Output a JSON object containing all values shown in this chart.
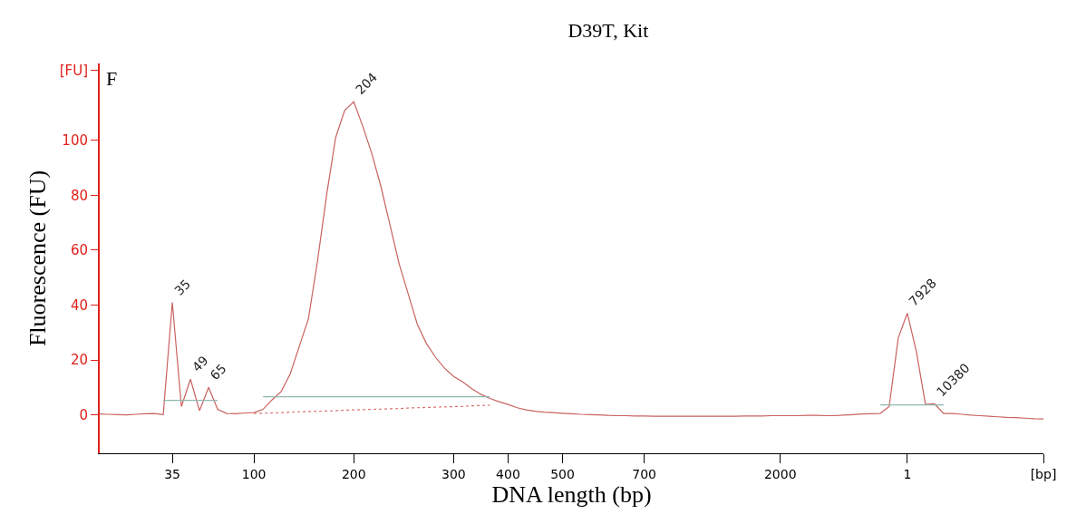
{
  "chart_data": {
    "type": "line",
    "title": "D39T, Kit",
    "xlabel": "DNA length (bp)",
    "ylabel": "Fluorescence (FU)",
    "categories": [
      null,
      null,
      null,
      null,
      null,
      null,
      null,
      null,
      "35",
      null,
      null,
      null,
      null,
      null,
      null,
      null,
      null,
      "100",
      null,
      null,
      null,
      null,
      null,
      null,
      null,
      null,
      null,
      null,
      "200",
      null,
      null,
      null,
      null,
      null,
      null,
      null,
      null,
      null,
      null,
      "300",
      null,
      null,
      null,
      null,
      null,
      "400",
      null,
      null,
      null,
      null,
      null,
      "500",
      null,
      null,
      null,
      null,
      null,
      null,
      null,
      null,
      "700",
      null,
      null,
      null,
      null,
      null,
      null,
      null,
      null,
      null,
      null,
      null,
      null,
      null,
      null,
      "2000",
      null,
      null,
      null,
      null,
      null,
      null,
      null,
      null,
      null,
      null,
      null,
      null,
      null,
      "1",
      null,
      null,
      null,
      null,
      null,
      null,
      null,
      null,
      null,
      null,
      null,
      null,
      null,
      null,
      "[bp]"
    ],
    "series": [
      {
        "color": "#c8625f",
        "values": [
          0.3,
          0.2,
          0.1,
          0,
          0.2,
          0.4,
          0.5,
          0.1,
          41,
          3,
          13,
          1.5,
          10,
          2,
          0.5,
          0.4,
          0.7,
          0.8,
          2,
          5.5,
          8.5,
          15,
          25,
          35,
          56,
          80,
          101,
          111,
          114,
          105,
          95,
          83,
          69,
          55,
          44,
          33,
          26,
          21,
          17,
          14,
          12,
          9.5,
          7.5,
          6,
          4.8,
          3.8,
          2.6,
          1.8,
          1.3,
          1,
          0.8,
          0.6,
          0.4,
          0.2,
          0.1,
          0,
          -0.2,
          -0.3,
          -0.3,
          -0.4,
          -0.4,
          -0.5,
          -0.5,
          -0.5,
          -0.5,
          -0.5,
          -0.5,
          -0.5,
          -0.5,
          -0.5,
          -0.5,
          -0.4,
          -0.4,
          -0.4,
          -0.3,
          -0.3,
          -0.3,
          -0.3,
          -0.2,
          -0.2,
          -0.3,
          -0.3,
          -0.1,
          0.1,
          0.3,
          0.4,
          0.5,
          3,
          28,
          37,
          23,
          3.8,
          4,
          0.5,
          0.5,
          0.2,
          -0.1,
          -0.3,
          -0.5,
          -0.7,
          -0.9,
          -1,
          -1.2,
          -1.4,
          -1.5
        ]
      },
      {
        "color": "#8fb8b0",
        "values": [
          null,
          null,
          null,
          null,
          null,
          null,
          null,
          5.3,
          5.3,
          5.3,
          5.3,
          5.3,
          5.3,
          5.3,
          null,
          null,
          null,
          null,
          null,
          null,
          null,
          null,
          null,
          null,
          null,
          null,
          null,
          null,
          null,
          null,
          null,
          null,
          null,
          null,
          null,
          null,
          null,
          null,
          null,
          null,
          null,
          null,
          null,
          null,
          null,
          null,
          null,
          null,
          null,
          null,
          null,
          null,
          null,
          null,
          null,
          null,
          null,
          null,
          null,
          null,
          null,
          null,
          null,
          null,
          null,
          null,
          null,
          null,
          null,
          null,
          null,
          null,
          null,
          null,
          null,
          null,
          null,
          null,
          null,
          null,
          null,
          null,
          null,
          null,
          null,
          null,
          null,
          null,
          null,
          null,
          null,
          null,
          null,
          null,
          null,
          null,
          null,
          null,
          null,
          null,
          null,
          null,
          null,
          null,
          null
        ]
      },
      {
        "color": "#8fb8b0",
        "values": [
          null,
          null,
          null,
          null,
          null,
          null,
          null,
          null,
          null,
          null,
          null,
          null,
          null,
          null,
          null,
          null,
          null,
          null,
          6.6,
          6.6,
          6.6,
          6.6,
          6.6,
          6.6,
          6.6,
          6.6,
          6.6,
          6.6,
          6.6,
          6.6,
          6.6,
          6.6,
          6.6,
          6.6,
          6.6,
          6.6,
          6.6,
          6.6,
          6.6,
          6.6,
          6.6,
          6.6,
          6.6,
          6.6,
          null,
          null,
          null,
          null,
          null,
          null,
          null,
          null,
          null,
          null,
          null,
          null,
          null,
          null,
          null,
          null,
          null,
          null,
          null,
          null,
          null,
          null,
          null,
          null,
          null,
          null,
          null,
          null,
          null,
          null,
          null,
          null,
          null,
          null,
          null,
          null,
          null,
          null,
          null,
          null,
          null,
          null,
          null,
          null,
          null,
          null,
          null,
          null,
          null,
          null,
          null,
          null,
          null,
          null,
          null,
          null,
          null,
          null,
          null,
          null,
          null
        ]
      },
      {
        "color": "#8fb8b0",
        "values": [
          null,
          null,
          null,
          null,
          null,
          null,
          null,
          null,
          null,
          null,
          null,
          null,
          null,
          null,
          null,
          null,
          null,
          null,
          null,
          null,
          null,
          null,
          null,
          null,
          null,
          null,
          null,
          null,
          null,
          null,
          null,
          null,
          null,
          null,
          null,
          null,
          null,
          null,
          null,
          null,
          null,
          null,
          null,
          null,
          null,
          null,
          null,
          null,
          null,
          null,
          null,
          null,
          null,
          null,
          null,
          null,
          null,
          null,
          null,
          null,
          null,
          null,
          null,
          null,
          null,
          null,
          null,
          null,
          null,
          null,
          null,
          null,
          null,
          null,
          null,
          null,
          null,
          null,
          null,
          null,
          null,
          null,
          null,
          null,
          null,
          null,
          3.6,
          3.6,
          3.6,
          3.6,
          3.6,
          3.6,
          3.6,
          3.6,
          null,
          null,
          null,
          null,
          null,
          null,
          null,
          null,
          null,
          null,
          null
        ]
      },
      {
        "color": "#d9706c",
        "line_style": "dotted",
        "values": [
          null,
          null,
          null,
          null,
          null,
          null,
          null,
          null,
          null,
          null,
          null,
          null,
          null,
          null,
          null,
          null,
          null,
          0.5,
          0.6,
          0.7,
          0.8,
          1,
          1.1,
          1.2,
          1.3,
          1.4,
          1.5,
          1.7,
          1.8,
          1.9,
          2,
          2.1,
          2.2,
          2.3,
          2.5,
          2.6,
          2.7,
          2.8,
          2.9,
          3,
          3.1,
          3.3,
          3.4,
          3.5,
          null,
          null,
          null,
          null,
          null,
          null,
          null,
          null,
          null,
          null,
          null,
          null,
          null,
          null,
          null,
          null,
          null,
          null,
          null,
          null,
          null,
          null,
          null,
          null,
          null,
          null,
          null,
          null,
          null,
          null,
          null,
          null,
          null,
          null,
          null,
          null,
          null,
          null,
          null,
          null,
          null,
          null,
          null,
          null,
          null,
          null,
          null,
          null,
          null,
          null,
          null,
          null,
          null,
          null,
          null,
          null,
          null,
          null,
          null,
          null,
          null
        ]
      }
    ],
    "ylim": [
      -14,
      128
    ],
    "yticks": [
      0,
      20,
      40,
      60,
      80,
      100,
      {
        "value": 125.6,
        "label": "[FU]"
      }
    ],
    "annotations": [
      "F",
      "35",
      "49",
      "65",
      "204",
      "7928",
      "10380"
    ],
    "marker": "none",
    "line_style": "solid"
  }
}
